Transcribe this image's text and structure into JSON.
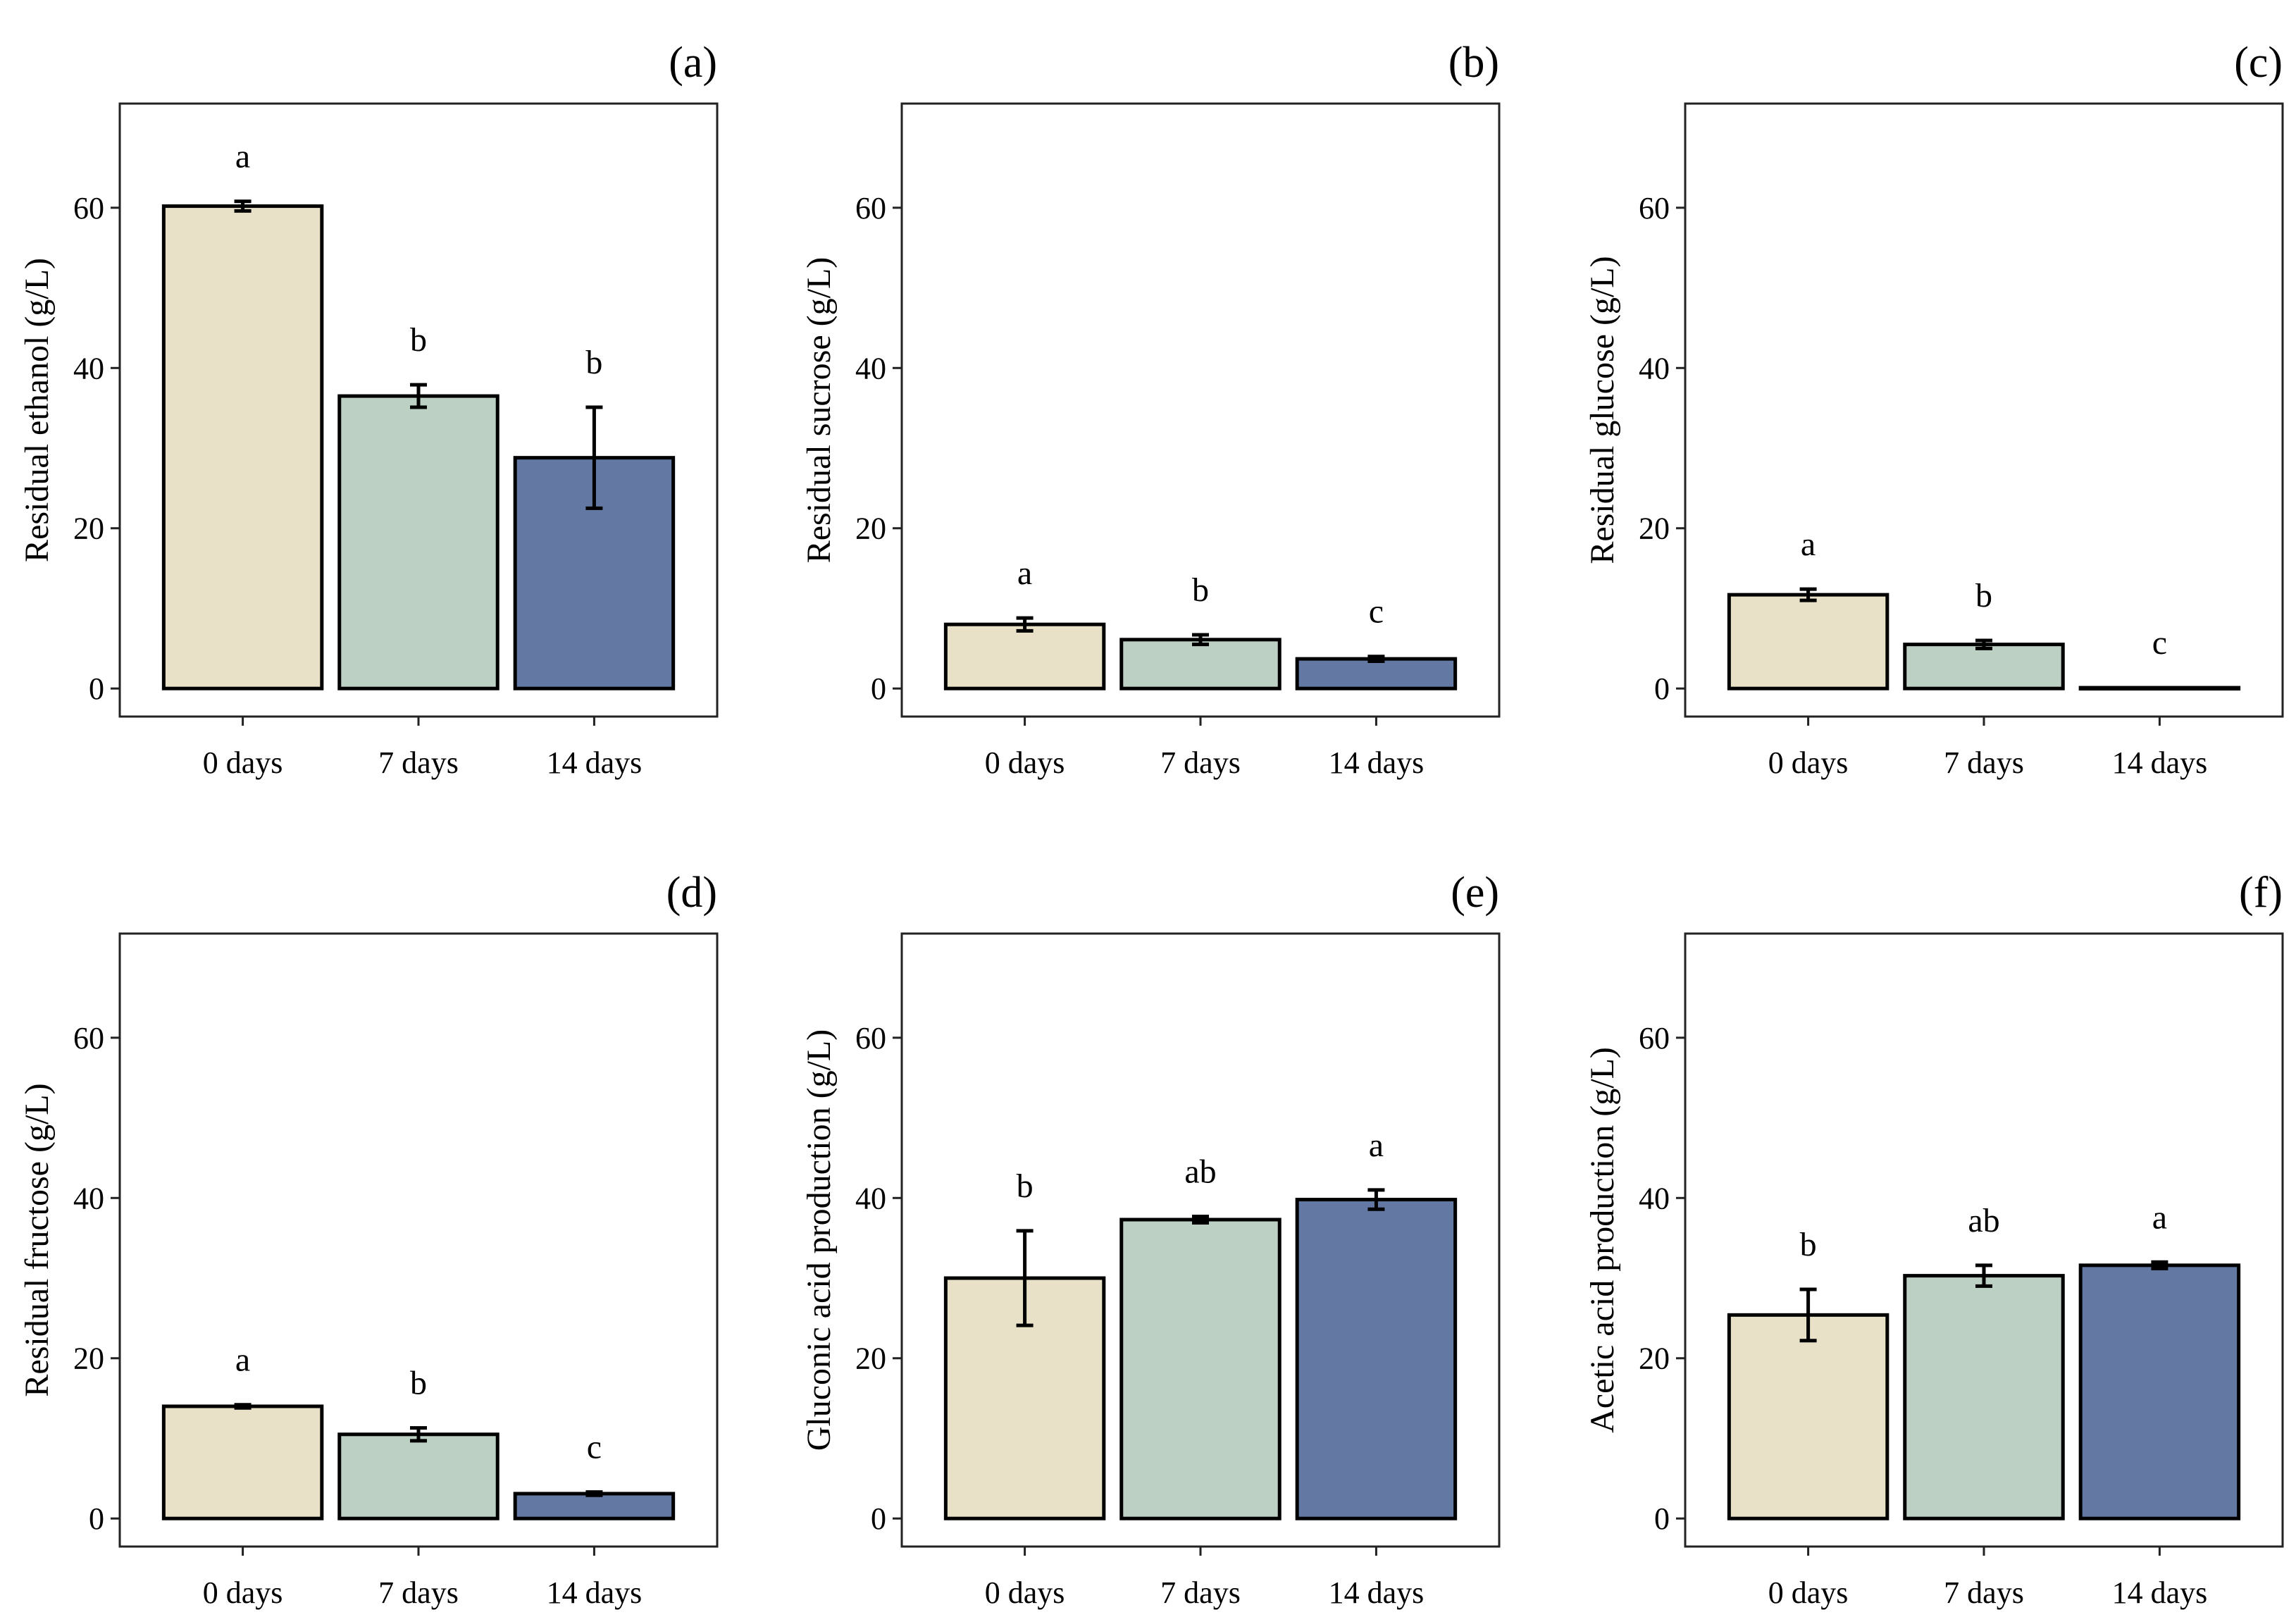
{
  "chart_data": [
    {
      "type": "bar",
      "panel": "(a)",
      "ylabel": "Residual ethanol (g/L)",
      "categories": [
        "0 days",
        "7 days",
        "14 days"
      ],
      "values": [
        60.2,
        36.5,
        28.8
      ],
      "errors": [
        0.6,
        1.4,
        6.3
      ],
      "significance": [
        "a",
        "b",
        "b"
      ],
      "ylim": [
        -3.5,
        73
      ],
      "yticks": [
        0,
        20,
        40,
        60
      ],
      "colors": [
        "#e8e1c8",
        "#bdd0c4",
        "#6379a3"
      ]
    },
    {
      "type": "bar",
      "panel": "(b)",
      "ylabel": "Residual sucrose (g/L)",
      "categories": [
        "0 days",
        "7 days",
        "14 days"
      ],
      "values": [
        8.0,
        6.1,
        3.7
      ],
      "errors": [
        0.8,
        0.6,
        0.3
      ],
      "significance": [
        "a",
        "b",
        "c"
      ],
      "ylim": [
        -3.5,
        73
      ],
      "yticks": [
        0,
        20,
        40,
        60
      ],
      "colors": [
        "#e8e1c8",
        "#bdd0c4",
        "#6379a3"
      ]
    },
    {
      "type": "bar",
      "panel": "(c)",
      "ylabel": "Residual glucose (g/L)",
      "categories": [
        "0 days",
        "7 days",
        "14 days"
      ],
      "values": [
        11.7,
        5.5,
        0.1
      ],
      "errors": [
        0.7,
        0.5,
        0.0
      ],
      "significance": [
        "a",
        "b",
        "c"
      ],
      "ylim": [
        -3.5,
        73
      ],
      "yticks": [
        0,
        20,
        40,
        60
      ],
      "colors": [
        "#e8e1c8",
        "#bdd0c4",
        "#6379a3"
      ]
    },
    {
      "type": "bar",
      "panel": "(d)",
      "ylabel": "Residual fructose (g/L)",
      "categories": [
        "0 days",
        "7 days",
        "14 days"
      ],
      "values": [
        14.0,
        10.5,
        3.1
      ],
      "errors": [
        0.2,
        0.8,
        0.2
      ],
      "significance": [
        "a",
        "b",
        "c"
      ],
      "ylim": [
        -3.5,
        73
      ],
      "yticks": [
        0,
        20,
        40,
        60
      ],
      "colors": [
        "#e8e1c8",
        "#bdd0c4",
        "#6379a3"
      ]
    },
    {
      "type": "bar",
      "panel": "(e)",
      "ylabel": "Gluconic acid production (g/L)",
      "categories": [
        "0 days",
        "7 days",
        "14 days"
      ],
      "values": [
        30.0,
        37.3,
        39.8
      ],
      "errors": [
        5.9,
        0.4,
        1.2
      ],
      "significance": [
        "b",
        "ab",
        "a"
      ],
      "ylim": [
        -3.5,
        73
      ],
      "yticks": [
        0,
        20,
        40,
        60
      ],
      "colors": [
        "#e8e1c8",
        "#bdd0c4",
        "#6379a3"
      ]
    },
    {
      "type": "bar",
      "panel": "(f)",
      "ylabel": "Acetic acid production (g/L)",
      "categories": [
        "0 days",
        "7 days",
        "14 days"
      ],
      "values": [
        25.4,
        30.3,
        31.6
      ],
      "errors": [
        3.2,
        1.3,
        0.4
      ],
      "significance": [
        "b",
        "ab",
        "a"
      ],
      "ylim": [
        -3.5,
        73
      ],
      "yticks": [
        0,
        20,
        40,
        60
      ],
      "colors": [
        "#e8e1c8",
        "#bdd0c4",
        "#6379a3"
      ]
    }
  ]
}
